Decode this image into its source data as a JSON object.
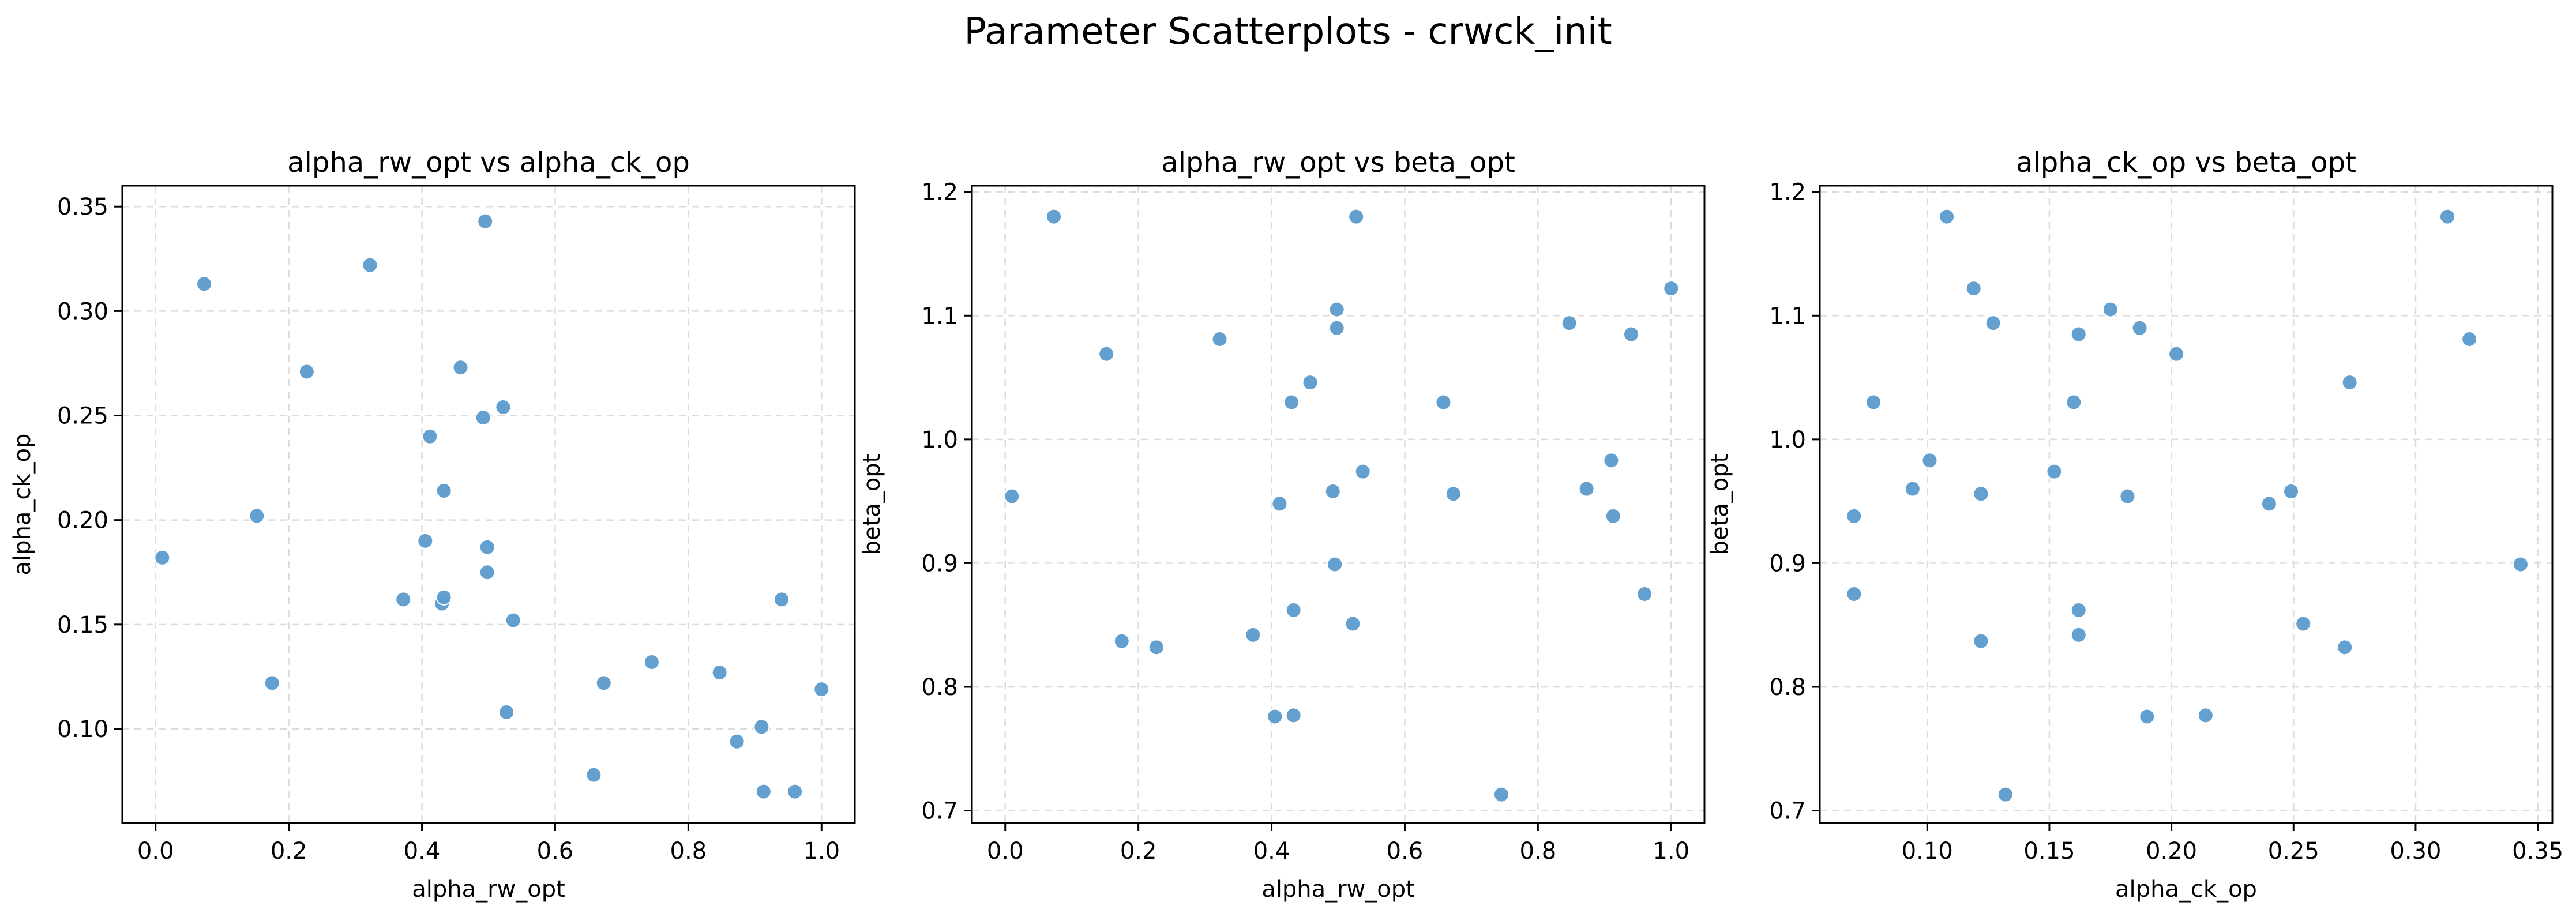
{
  "figure": {
    "suptitle": "Parameter Scatterplots - crwck_init"
  },
  "colors": {
    "point": "#5b9bcc",
    "grid": "#dcdcdc",
    "axis": "#000000",
    "background": "#ffffff"
  },
  "chart_data": [
    {
      "type": "scatter",
      "title": "alpha_rw_opt vs alpha_ck_op",
      "xlabel": "alpha_rw_opt",
      "ylabel": "alpha_ck_op",
      "xlim": [
        -0.05,
        1.05
      ],
      "ylim": [
        0.055,
        0.36
      ],
      "xticks": [
        0.0,
        0.2,
        0.4,
        0.6,
        0.8,
        1.0
      ],
      "xtick_labels": [
        "0.0",
        "0.2",
        "0.4",
        "0.6",
        "0.8",
        "1.0"
      ],
      "yticks": [
        0.1,
        0.15,
        0.2,
        0.25,
        0.3,
        0.35
      ],
      "ytick_labels": [
        "0.10",
        "0.15",
        "0.20",
        "0.25",
        "0.30",
        "0.35"
      ],
      "grid": true,
      "points": [
        [
          0.01,
          0.182
        ],
        [
          0.073,
          0.313
        ],
        [
          0.152,
          0.202
        ],
        [
          0.175,
          0.122
        ],
        [
          0.227,
          0.271
        ],
        [
          0.322,
          0.322
        ],
        [
          0.372,
          0.162
        ],
        [
          0.405,
          0.19
        ],
        [
          0.412,
          0.24
        ],
        [
          0.43,
          0.16
        ],
        [
          0.433,
          0.163
        ],
        [
          0.433,
          0.214
        ],
        [
          0.458,
          0.273
        ],
        [
          0.492,
          0.249
        ],
        [
          0.495,
          0.343
        ],
        [
          0.498,
          0.187
        ],
        [
          0.498,
          0.175
        ],
        [
          0.522,
          0.254
        ],
        [
          0.527,
          0.108
        ],
        [
          0.537,
          0.152
        ],
        [
          0.658,
          0.078
        ],
        [
          0.673,
          0.122
        ],
        [
          0.745,
          0.132
        ],
        [
          0.847,
          0.127
        ],
        [
          0.873,
          0.094
        ],
        [
          0.91,
          0.101
        ],
        [
          0.913,
          0.07
        ],
        [
          0.94,
          0.162
        ],
        [
          0.96,
          0.07
        ],
        [
          1.0,
          0.119
        ]
      ]
    },
    {
      "type": "scatter",
      "title": "alpha_rw_opt vs beta_opt",
      "xlabel": "alpha_rw_opt",
      "ylabel": "beta_opt",
      "xlim": [
        -0.05,
        1.05
      ],
      "ylim": [
        0.69,
        1.205
      ],
      "xticks": [
        0.0,
        0.2,
        0.4,
        0.6,
        0.8,
        1.0
      ],
      "xtick_labels": [
        "0.0",
        "0.2",
        "0.4",
        "0.6",
        "0.8",
        "1.0"
      ],
      "yticks": [
        0.7,
        0.8,
        0.9,
        1.0,
        1.1,
        1.2
      ],
      "ytick_labels": [
        "0.7",
        "0.8",
        "0.9",
        "1.0",
        "1.1",
        "1.2"
      ],
      "grid": true,
      "points": [
        [
          0.01,
          0.954
        ],
        [
          0.073,
          1.18
        ],
        [
          0.152,
          1.069
        ],
        [
          0.175,
          0.837
        ],
        [
          0.227,
          0.832
        ],
        [
          0.322,
          1.081
        ],
        [
          0.372,
          0.842
        ],
        [
          0.405,
          0.776
        ],
        [
          0.412,
          0.948
        ],
        [
          0.43,
          1.03
        ],
        [
          0.433,
          0.777
        ],
        [
          0.433,
          0.862
        ],
        [
          0.458,
          1.046
        ],
        [
          0.492,
          0.958
        ],
        [
          0.495,
          0.899
        ],
        [
          0.498,
          1.105
        ],
        [
          0.498,
          1.09
        ],
        [
          0.522,
          0.851
        ],
        [
          0.527,
          1.18
        ],
        [
          0.537,
          0.974
        ],
        [
          0.658,
          1.03
        ],
        [
          0.673,
          0.956
        ],
        [
          0.745,
          0.713
        ],
        [
          0.847,
          1.094
        ],
        [
          0.873,
          0.96
        ],
        [
          0.91,
          0.983
        ],
        [
          0.913,
          0.938
        ],
        [
          0.94,
          1.085
        ],
        [
          0.96,
          0.875
        ],
        [
          1.0,
          1.122
        ]
      ]
    },
    {
      "type": "scatter",
      "title": "alpha_ck_op vs beta_opt",
      "xlabel": "alpha_ck_op",
      "ylabel": "beta_opt",
      "xlim": [
        0.056,
        0.356
      ],
      "ylim": [
        0.69,
        1.205
      ],
      "xticks": [
        0.1,
        0.15,
        0.2,
        0.25,
        0.3,
        0.35
      ],
      "xtick_labels": [
        "0.10",
        "0.15",
        "0.20",
        "0.25",
        "0.30",
        "0.35"
      ],
      "yticks": [
        0.7,
        0.8,
        0.9,
        1.0,
        1.1,
        1.2
      ],
      "ytick_labels": [
        "0.7",
        "0.8",
        "0.9",
        "1.0",
        "1.1",
        "1.2"
      ],
      "grid": true,
      "points": [
        [
          0.07,
          0.938
        ],
        [
          0.07,
          0.875
        ],
        [
          0.078,
          1.03
        ],
        [
          0.094,
          0.96
        ],
        [
          0.101,
          0.983
        ],
        [
          0.108,
          1.18
        ],
        [
          0.119,
          1.122
        ],
        [
          0.122,
          0.956
        ],
        [
          0.122,
          0.837
        ],
        [
          0.127,
          1.094
        ],
        [
          0.132,
          0.713
        ],
        [
          0.152,
          0.974
        ],
        [
          0.16,
          1.03
        ],
        [
          0.162,
          1.085
        ],
        [
          0.162,
          0.862
        ],
        [
          0.162,
          0.842
        ],
        [
          0.175,
          1.105
        ],
        [
          0.182,
          0.954
        ],
        [
          0.187,
          1.09
        ],
        [
          0.19,
          0.776
        ],
        [
          0.202,
          1.069
        ],
        [
          0.214,
          0.777
        ],
        [
          0.24,
          0.948
        ],
        [
          0.249,
          0.958
        ],
        [
          0.254,
          0.851
        ],
        [
          0.271,
          0.832
        ],
        [
          0.273,
          1.046
        ],
        [
          0.313,
          1.18
        ],
        [
          0.322,
          1.081
        ],
        [
          0.343,
          0.899
        ]
      ]
    }
  ]
}
